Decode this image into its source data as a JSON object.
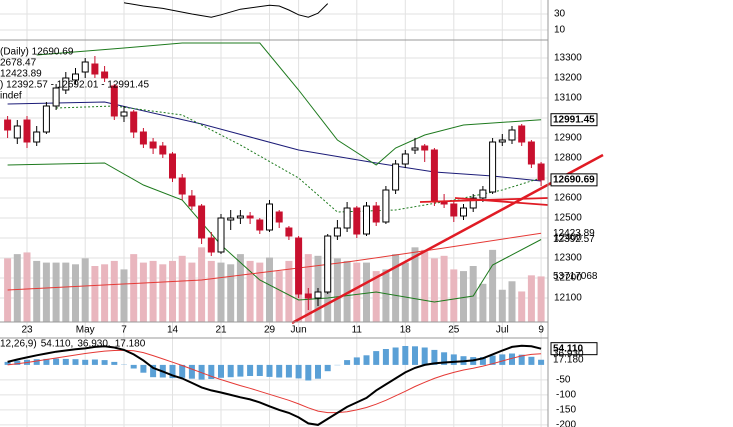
{
  "chart_data": {
    "type": "candlestick",
    "categories": [
      null,
      null,
      "23",
      null,
      null,
      null,
      null,
      null,
      "May",
      null,
      null,
      null,
      "7",
      null,
      null,
      null,
      null,
      "14",
      null,
      null,
      null,
      null,
      "21",
      null,
      null,
      null,
      null,
      "29",
      null,
      null,
      "Jun",
      null,
      null,
      null,
      null,
      null,
      "11",
      null,
      null,
      null,
      null,
      "18",
      null,
      null,
      null,
      null,
      "25",
      null,
      null,
      null,
      null,
      "Jul",
      null,
      null,
      null,
      "9"
    ],
    "open": [
      12990,
      12900,
      12990,
      12880,
      12930,
      13060,
      13140,
      13190,
      13230,
      13270,
      13230,
      13160,
      13010,
      13030,
      12930,
      12880,
      12860,
      12820,
      12700,
      12610,
      12560,
      12400,
      12330,
      12490,
      12500,
      12510,
      12490,
      12440,
      12530,
      12450,
      12400,
      12120,
      12100,
      12130,
      12410,
      12450,
      12550,
      12420,
      12560,
      12480,
      12640,
      12770,
      12840,
      12860,
      12840,
      12580,
      12570,
      12510,
      12550,
      12600,
      12630,
      12880,
      12890,
      12960,
      12880,
      12770
    ],
    "high": [
      13010,
      12990,
      13010,
      12960,
      13080,
      13170,
      13230,
      13250,
      13300,
      13310,
      13260,
      13170,
      13060,
      13040,
      12950,
      12900,
      12880,
      12830,
      12720,
      12640,
      12570,
      12430,
      12520,
      12540,
      12540,
      12530,
      12500,
      12590,
      12540,
      12460,
      12410,
      12150,
      12150,
      12420,
      12490,
      12580,
      12560,
      12580,
      12580,
      12660,
      12790,
      12840,
      12900,
      12870,
      12850,
      12620,
      12590,
      12570,
      12620,
      12660,
      12900,
      12920,
      12960,
      12970,
      12890,
      12780
    ],
    "low": [
      12900,
      12870,
      12850,
      12860,
      12920,
      13040,
      13120,
      13170,
      13200,
      13200,
      13180,
      12990,
      12980,
      12900,
      12850,
      12820,
      12800,
      12680,
      12590,
      12540,
      12370,
      12310,
      12320,
      12440,
      12470,
      12470,
      12420,
      12430,
      12450,
      12390,
      12100,
      12040,
      12060,
      12120,
      12390,
      12430,
      12400,
      12410,
      12460,
      12470,
      12620,
      12750,
      12820,
      12780,
      12560,
      12550,
      12480,
      12490,
      12530,
      12580,
      12620,
      12860,
      12870,
      12860,
      12750,
      12660
    ],
    "close": [
      12940,
      12960,
      12880,
      12930,
      13060,
      13150,
      13200,
      13220,
      13280,
      13220,
      13200,
      13010,
      13030,
      12930,
      12870,
      12850,
      12820,
      12700,
      12620,
      12560,
      12400,
      12330,
      12500,
      12500,
      12510,
      12500,
      12440,
      12570,
      12480,
      12410,
      12120,
      12100,
      12130,
      12410,
      12450,
      12550,
      12420,
      12560,
      12480,
      12640,
      12770,
      12820,
      12850,
      12840,
      12580,
      12570,
      12510,
      12550,
      12600,
      12640,
      12880,
      12890,
      12940,
      12880,
      12770,
      12690.69
    ],
    "up_color": "#ffffff",
    "down_color": "#c8102e",
    "ylim": [
      11980,
      13380
    ],
    "yticks": [
      12100,
      12200,
      12300,
      12400,
      12500,
      12600,
      12700,
      12800,
      12900,
      13000,
      13100,
      13200,
      13300
    ],
    "grid": true,
    "legend": [
      {
        "text": "(Daily) 12690.69",
        "color": "#000000"
      },
      {
        "text": "2678.47",
        "color": "#1c1c78"
      },
      {
        "text": "12423.89",
        "color": "#c8102e"
      },
      {
        "text": ") 12392.57 - 12692.01 - 12991.45",
        "color": "#1e7a1e"
      },
      {
        "text": "indef",
        "color": "#000000"
      }
    ],
    "overlays": [
      {
        "color": "#1c1c78",
        "dash": false,
        "width": 1,
        "x": [
          0,
          10,
          20,
          30,
          38,
          44,
          50,
          55
        ],
        "values": [
          13070,
          13080,
          12970,
          12840,
          12775,
          12730,
          12710,
          12685
        ]
      },
      {
        "color": "#1e7a1e",
        "dash": true,
        "width": 1,
        "x": [
          5,
          11,
          18,
          24,
          30,
          34,
          40,
          46,
          51,
          55
        ],
        "values": [
          13050,
          13060,
          13015,
          12865,
          12700,
          12530,
          12540,
          12590,
          12640,
          12700
        ]
      },
      {
        "color": "#1e7a1e",
        "dash": false,
        "width": 1,
        "x": [
          3,
          12,
          18,
          26,
          30,
          34,
          38,
          40,
          43,
          47,
          55
        ],
        "values": [
          13315,
          13350,
          13375,
          13375,
          13140,
          12890,
          12765,
          12850,
          12915,
          12965,
          12991.45
        ]
      },
      {
        "color": "#1e7a1e",
        "dash": false,
        "width": 1,
        "x": [
          0,
          10,
          14,
          18,
          22,
          26,
          30,
          33,
          38,
          44,
          48,
          50,
          55
        ],
        "values": [
          12765,
          12775,
          12665,
          12590,
          12365,
          12190,
          12090,
          12100,
          12130,
          12080,
          12110,
          12265,
          12392.57
        ]
      },
      {
        "color": "#e53935",
        "dash": false,
        "width": 1,
        "x": [
          0,
          20,
          35,
          45,
          55
        ],
        "values": [
          12140,
          12190,
          12280,
          12350,
          12423.89
        ]
      }
    ],
    "price_tags": [
      {
        "value": 12991.45,
        "label": "12991.45",
        "color": "#000000",
        "boxed": true
      },
      {
        "value": 12690.69,
        "label": "12690.69",
        "color": "#000000",
        "boxed": true
      },
      {
        "value": 12423.89,
        "label": "12423.89",
        "color": "#c8102e",
        "boxed": false
      },
      {
        "value": 12392.57,
        "label": "12392.57",
        "color": "#1e7a1e",
        "boxed": false
      }
    ],
    "volume": {
      "ylim": [
        0,
        330000000
      ],
      "up_color": "#b9b9b9",
      "down_color": "#e9b6be",
      "values": [
        75000000,
        80000000,
        82000000,
        72000000,
        70000000,
        70000000,
        70000000,
        68000000,
        75000000,
        66000000,
        68000000,
        72000000,
        62000000,
        80000000,
        70000000,
        72000000,
        68000000,
        72000000,
        78000000,
        70000000,
        88000000,
        72000000,
        70000000,
        68000000,
        80000000,
        72000000,
        70000000,
        76000000,
        60000000,
        72000000,
        95000000,
        80000000,
        78000000,
        86000000,
        75000000,
        72000000,
        70000000,
        70000000,
        60000000,
        62000000,
        80000000,
        70000000,
        88000000,
        85000000,
        75000000,
        78000000,
        62000000,
        60000000,
        66000000,
        45000000,
        85000000,
        38000000,
        48000000,
        36000000,
        55000000,
        53717068
      ],
      "tag": {
        "value": 53717068,
        "label": "53717068"
      }
    },
    "rsi": {
      "ylim": [
        0,
        47.5
      ],
      "yticks": [
        30,
        10
      ],
      "color": "#000000",
      "x": [
        12,
        14,
        16,
        19,
        20,
        21,
        22,
        24,
        27,
        28,
        29,
        30,
        31,
        32,
        33
      ],
      "values": [
        44,
        40,
        37,
        30,
        28,
        26,
        29,
        36,
        41,
        40,
        35,
        29,
        26,
        31,
        43
      ]
    },
    "macd": {
      "ylim": [
        -207,
        83
      ],
      "yticks": [
        -50,
        -100,
        -150,
        -200
      ],
      "legend": [
        {
          "text": "12,26,9)",
          "color": "#000000"
        },
        {
          "text": "54.110,",
          "color": "#000000"
        },
        {
          "text": "36.930,",
          "color": "#c8102e"
        },
        {
          "text": "17.180",
          "color": "#3a8fcf"
        }
      ],
      "line_color": "#000000",
      "signal_color": "#e53935",
      "hist_color": "#5aa0d6",
      "line": [
        10,
        18,
        25,
        32,
        38,
        44,
        48,
        52,
        55,
        60,
        62,
        58,
        50,
        35,
        15,
        -10,
        -22,
        -35,
        -45,
        -60,
        -75,
        -85,
        -92,
        -100,
        -108,
        -115,
        -125,
        -138,
        -150,
        -160,
        -175,
        -195,
        -200,
        -180,
        -160,
        -140,
        -125,
        -110,
        -85,
        -65,
        -45,
        -25,
        -10,
        0,
        5,
        8,
        10,
        12,
        15,
        22,
        35,
        48,
        60,
        64,
        62,
        54.11
      ],
      "signal": [
        0,
        4,
        8,
        13,
        18,
        23,
        28,
        33,
        38,
        42,
        46,
        48,
        49,
        47,
        41,
        31,
        20,
        9,
        -2,
        -14,
        -26,
        -38,
        -49,
        -59,
        -69,
        -78,
        -88,
        -98,
        -108,
        -118,
        -130,
        -143,
        -154,
        -159,
        -159,
        -156,
        -150,
        -142,
        -131,
        -118,
        -103,
        -88,
        -72,
        -58,
        -45,
        -34,
        -25,
        -17,
        -11,
        -4,
        4,
        13,
        22,
        30,
        35,
        36.93
      ],
      "hist": [
        10,
        14,
        17,
        19,
        20,
        21,
        20,
        19,
        17,
        18,
        16,
        10,
        1,
        -12,
        -26,
        -41,
        -42,
        -44,
        -43,
        -46,
        -49,
        -47,
        -43,
        -41,
        -39,
        -37,
        -37,
        -40,
        -42,
        -42,
        -45,
        -52,
        -46,
        -21,
        -1,
        16,
        25,
        32,
        46,
        53,
        58,
        63,
        62,
        58,
        50,
        42,
        35,
        29,
        26,
        26,
        31,
        35,
        38,
        34,
        27,
        17.18
      ],
      "tags": [
        {
          "value": 54.11,
          "label": "54.110",
          "color": "#000000",
          "boxed": true
        },
        {
          "value": 36.93,
          "label": "36.930",
          "color": "#c8102e",
          "boxed": false
        },
        {
          "value": 17.18,
          "label": "17.180",
          "color": "#3a8fcf",
          "boxed": false
        }
      ]
    }
  }
}
